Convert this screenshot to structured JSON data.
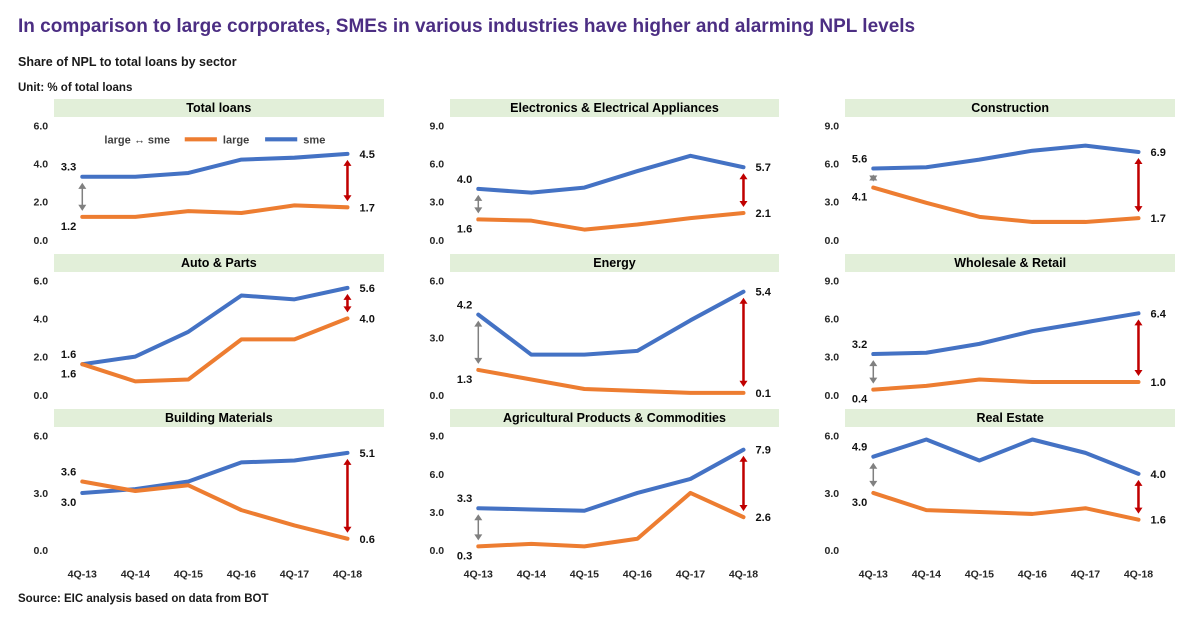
{
  "page": {
    "title": "In comparison to large corporates, SMEs in various industries have higher and alarming NPL levels",
    "subtitle": "Share of NPL to total loans by sector",
    "unit": "Unit: % of total loans",
    "source": "Source: EIC analysis based on data from BOT"
  },
  "legend": {
    "gap": "large ↔ sme",
    "large": "large",
    "sme": "sme"
  },
  "colors": {
    "title": "#4C2E83",
    "sme": "#4472C4",
    "large": "#ED7D31",
    "gap_start_arrow": "#808080",
    "gap_end_arrow": "#C00000",
    "panel_header_bg": "#E2EFD9",
    "axis_text": "#262626"
  },
  "categories": [
    "4Q-13",
    "4Q-14",
    "4Q-15",
    "4Q-16",
    "4Q-17",
    "4Q-18"
  ],
  "chart_data": [
    {
      "type": "line",
      "title": "Total loans",
      "ylim": [
        0,
        6
      ],
      "yticks": [
        "6.0",
        "4.0",
        "2.0",
        "0.0"
      ],
      "series": [
        {
          "name": "sme",
          "values": [
            3.3,
            3.3,
            3.5,
            4.2,
            4.3,
            4.5
          ],
          "start_label": "3.3",
          "end_label": "4.5"
        },
        {
          "name": "large",
          "values": [
            1.2,
            1.2,
            1.5,
            1.4,
            1.8,
            1.7
          ],
          "start_label": "1.2",
          "end_label": "1.7"
        }
      ],
      "start_arrow": true,
      "end_arrow": true,
      "show_legend": true,
      "show_x_labels": false
    },
    {
      "type": "line",
      "title": "Electronics & Electrical Appliances",
      "ylim": [
        0,
        9
      ],
      "yticks": [
        "9.0",
        "6.0",
        "3.0",
        "0.0"
      ],
      "series": [
        {
          "name": "sme",
          "values": [
            4.0,
            3.7,
            4.1,
            5.4,
            6.6,
            5.7
          ],
          "start_label": "4.0",
          "end_label": "5.7"
        },
        {
          "name": "large",
          "values": [
            1.6,
            1.5,
            0.8,
            1.2,
            1.7,
            2.1
          ],
          "start_label": "1.6",
          "end_label": "2.1"
        }
      ],
      "start_arrow": true,
      "end_arrow": true,
      "show_legend": false,
      "show_x_labels": false
    },
    {
      "type": "line",
      "title": "Construction",
      "ylim": [
        0,
        9
      ],
      "yticks": [
        "9.0",
        "6.0",
        "3.0",
        "0.0"
      ],
      "series": [
        {
          "name": "sme",
          "values": [
            5.6,
            5.7,
            6.3,
            7.0,
            7.4,
            6.9
          ],
          "start_label": "5.6",
          "end_label": "6.9"
        },
        {
          "name": "large",
          "values": [
            4.1,
            2.9,
            1.8,
            1.4,
            1.4,
            1.7
          ],
          "start_label": "4.1",
          "end_label": "1.7"
        }
      ],
      "start_arrow": true,
      "end_arrow": true,
      "show_legend": false,
      "show_x_labels": false
    },
    {
      "type": "line",
      "title": "Auto & Parts",
      "ylim": [
        0,
        6
      ],
      "yticks": [
        "6.0",
        "4.0",
        "2.0",
        "0.0"
      ],
      "series": [
        {
          "name": "sme",
          "values": [
            1.6,
            2.0,
            3.3,
            5.2,
            5.0,
            5.6
          ],
          "start_label": "1.6",
          "end_label": "5.6"
        },
        {
          "name": "large",
          "values": [
            1.6,
            0.7,
            0.8,
            2.9,
            2.9,
            4.0
          ],
          "start_label": "1.6",
          "end_label": "4.0"
        }
      ],
      "start_arrow": false,
      "end_arrow": true,
      "show_legend": false,
      "show_x_labels": false
    },
    {
      "type": "line",
      "title": "Energy",
      "ylim": [
        0,
        6
      ],
      "yticks": [
        "6.0",
        "3.0",
        "0.0"
      ],
      "series": [
        {
          "name": "sme",
          "values": [
            4.2,
            2.1,
            2.1,
            2.3,
            3.9,
            5.4
          ],
          "start_label": "4.2",
          "end_label": "5.4"
        },
        {
          "name": "large",
          "values": [
            1.3,
            0.8,
            0.3,
            0.2,
            0.1,
            0.1
          ],
          "start_label": "1.3",
          "end_label": "0.1"
        }
      ],
      "start_arrow": true,
      "end_arrow": true,
      "show_legend": false,
      "show_x_labels": false
    },
    {
      "type": "line",
      "title": "Wholesale & Retail",
      "ylim": [
        0,
        9
      ],
      "yticks": [
        "9.0",
        "6.0",
        "3.0",
        "0.0"
      ],
      "series": [
        {
          "name": "sme",
          "values": [
            3.2,
            3.3,
            4.0,
            5.0,
            5.7,
            6.4
          ],
          "start_label": "3.2",
          "end_label": "6.4"
        },
        {
          "name": "large",
          "values": [
            0.4,
            0.7,
            1.2,
            1.0,
            1.0,
            1.0
          ],
          "start_label": "0.4",
          "end_label": "1.0"
        }
      ],
      "start_arrow": true,
      "end_arrow": true,
      "show_legend": false,
      "show_x_labels": false
    },
    {
      "type": "line",
      "title": "Building Materials",
      "ylim": [
        0,
        6
      ],
      "yticks": [
        "6.0",
        "3.0",
        "0.0"
      ],
      "series": [
        {
          "name": "sme",
          "values": [
            3.0,
            3.2,
            3.6,
            4.6,
            4.7,
            5.1
          ],
          "start_label": "3.0",
          "end_label": "5.1"
        },
        {
          "name": "large",
          "values": [
            3.6,
            3.1,
            3.4,
            2.1,
            1.3,
            0.6
          ],
          "start_label": "3.6",
          "end_label": "0.6"
        }
      ],
      "start_arrow": false,
      "end_arrow": true,
      "show_legend": false,
      "show_x_labels": true
    },
    {
      "type": "line",
      "title": "Agricultural Products & Commodities",
      "ylim": [
        0,
        9
      ],
      "yticks": [
        "9.0",
        "6.0",
        "3.0",
        "0.0"
      ],
      "series": [
        {
          "name": "sme",
          "values": [
            3.3,
            3.2,
            3.1,
            4.5,
            5.6,
            7.9
          ],
          "start_label": "3.3",
          "end_label": "7.9"
        },
        {
          "name": "large",
          "values": [
            0.3,
            0.5,
            0.3,
            0.9,
            4.5,
            2.6
          ],
          "start_label": "0.3",
          "end_label": "2.6"
        }
      ],
      "start_arrow": true,
      "end_arrow": true,
      "show_legend": false,
      "show_x_labels": true
    },
    {
      "type": "line",
      "title": "Real Estate",
      "ylim": [
        0,
        6
      ],
      "yticks": [
        "6.0",
        "3.0",
        "0.0"
      ],
      "series": [
        {
          "name": "sme",
          "values": [
            4.9,
            5.8,
            4.7,
            5.8,
            5.1,
            4.0
          ],
          "start_label": "4.9",
          "end_label": "4.0"
        },
        {
          "name": "large",
          "values": [
            3.0,
            2.1,
            2.0,
            1.9,
            2.2,
            1.6
          ],
          "start_label": "3.0",
          "end_label": "1.6"
        }
      ],
      "start_arrow": true,
      "end_arrow": true,
      "show_legend": false,
      "show_x_labels": true
    }
  ]
}
